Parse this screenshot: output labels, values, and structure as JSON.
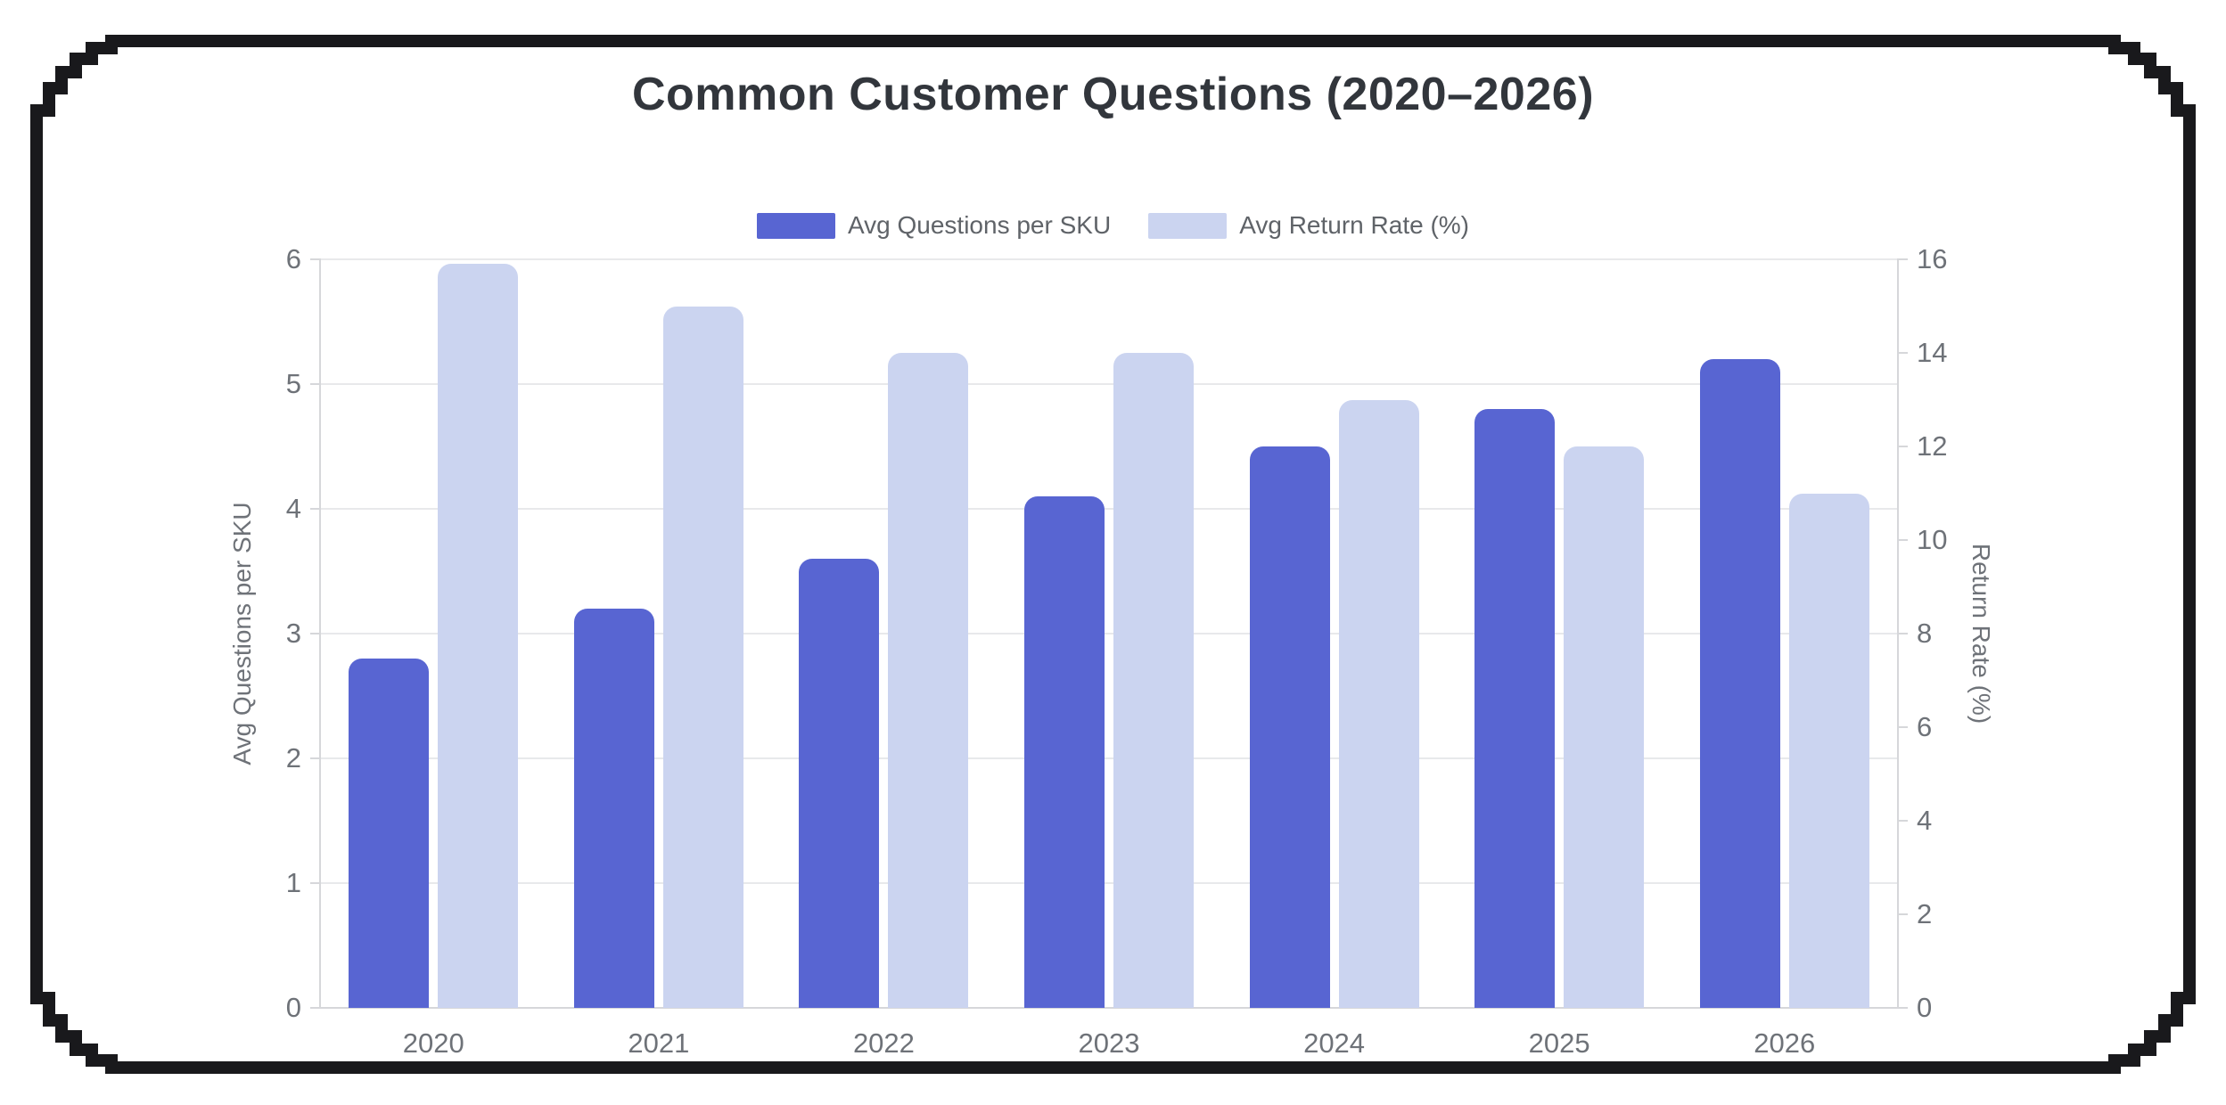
{
  "page": {
    "background": "#ffffff",
    "frame_color": "#19191c"
  },
  "chart_data": {
    "type": "bar",
    "title": "Common Customer Questions (2020–2026)",
    "categories": [
      "2020",
      "2021",
      "2022",
      "2023",
      "2024",
      "2025",
      "2026"
    ],
    "series": [
      {
        "name": "Avg Questions per SKU",
        "axis": "left",
        "color": "#5865d2",
        "values": [
          2.8,
          3.2,
          3.6,
          4.1,
          4.5,
          4.8,
          5.2
        ]
      },
      {
        "name": "Avg Return Rate (%)",
        "axis": "right",
        "color": "#cbd4f0",
        "values": [
          15.9,
          15.0,
          14.0,
          14.0,
          13.0,
          12.0,
          11.0
        ]
      }
    ],
    "axes": {
      "left": {
        "title": "Avg Questions per SKU",
        "min": 0,
        "max": 6,
        "step": 1,
        "ticks": [
          0,
          1,
          2,
          3,
          4,
          5,
          6
        ]
      },
      "right": {
        "title": "Return Rate (%)",
        "min": 0,
        "max": 16,
        "step": 2,
        "ticks": [
          0,
          2,
          4,
          6,
          8,
          10,
          12,
          14,
          16
        ]
      }
    },
    "legend": {
      "position": "top",
      "items": [
        "Avg Questions per SKU",
        "Avg Return Rate (%)"
      ]
    },
    "grid": true,
    "colors": {
      "grid": "#e8e9eb",
      "axis_line": "#d6d7da",
      "tick_text": "#6e7278",
      "title_text": "#32363c",
      "legend_text": "#5f6368"
    }
  }
}
